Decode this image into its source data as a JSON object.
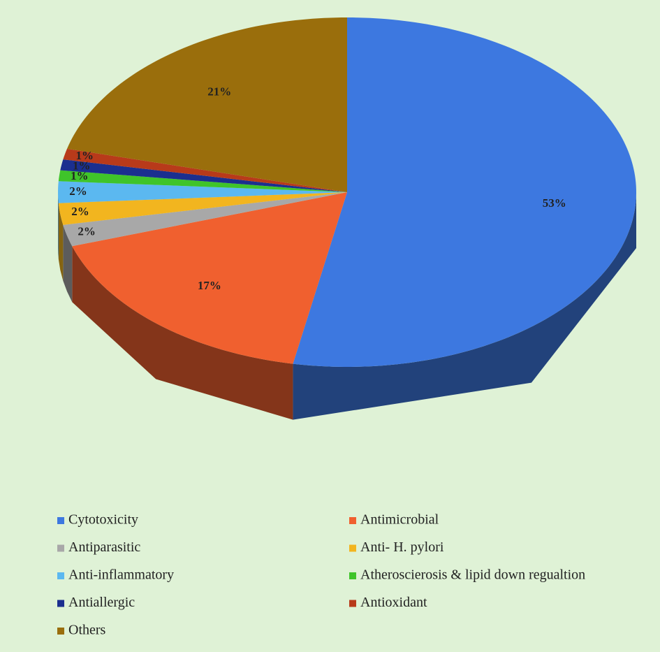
{
  "chart_data": {
    "type": "pie",
    "categories": [
      "Cytotoxicity",
      "Antimicrobial",
      "Antiparasitic",
      "Anti- H. pylori",
      "Anti-inflammatory",
      "Atheroscierosis & lipid down regualtion",
      "Antiallergic",
      "Antioxidant",
      "Others"
    ],
    "values": [
      53,
      17,
      2,
      2,
      2,
      1,
      1,
      1,
      21
    ],
    "value_labels": [
      "53%",
      "17%",
      "2%",
      "2%",
      "2%",
      "1%",
      "1%",
      "1%",
      "21%"
    ],
    "colors": [
      "#3d78e0",
      "#f0602f",
      "#a8a8a8",
      "#f2b51f",
      "#5bb8f0",
      "#3fc42a",
      "#1b2f8f",
      "#b83a1a",
      "#9a6e0c"
    ]
  }
}
